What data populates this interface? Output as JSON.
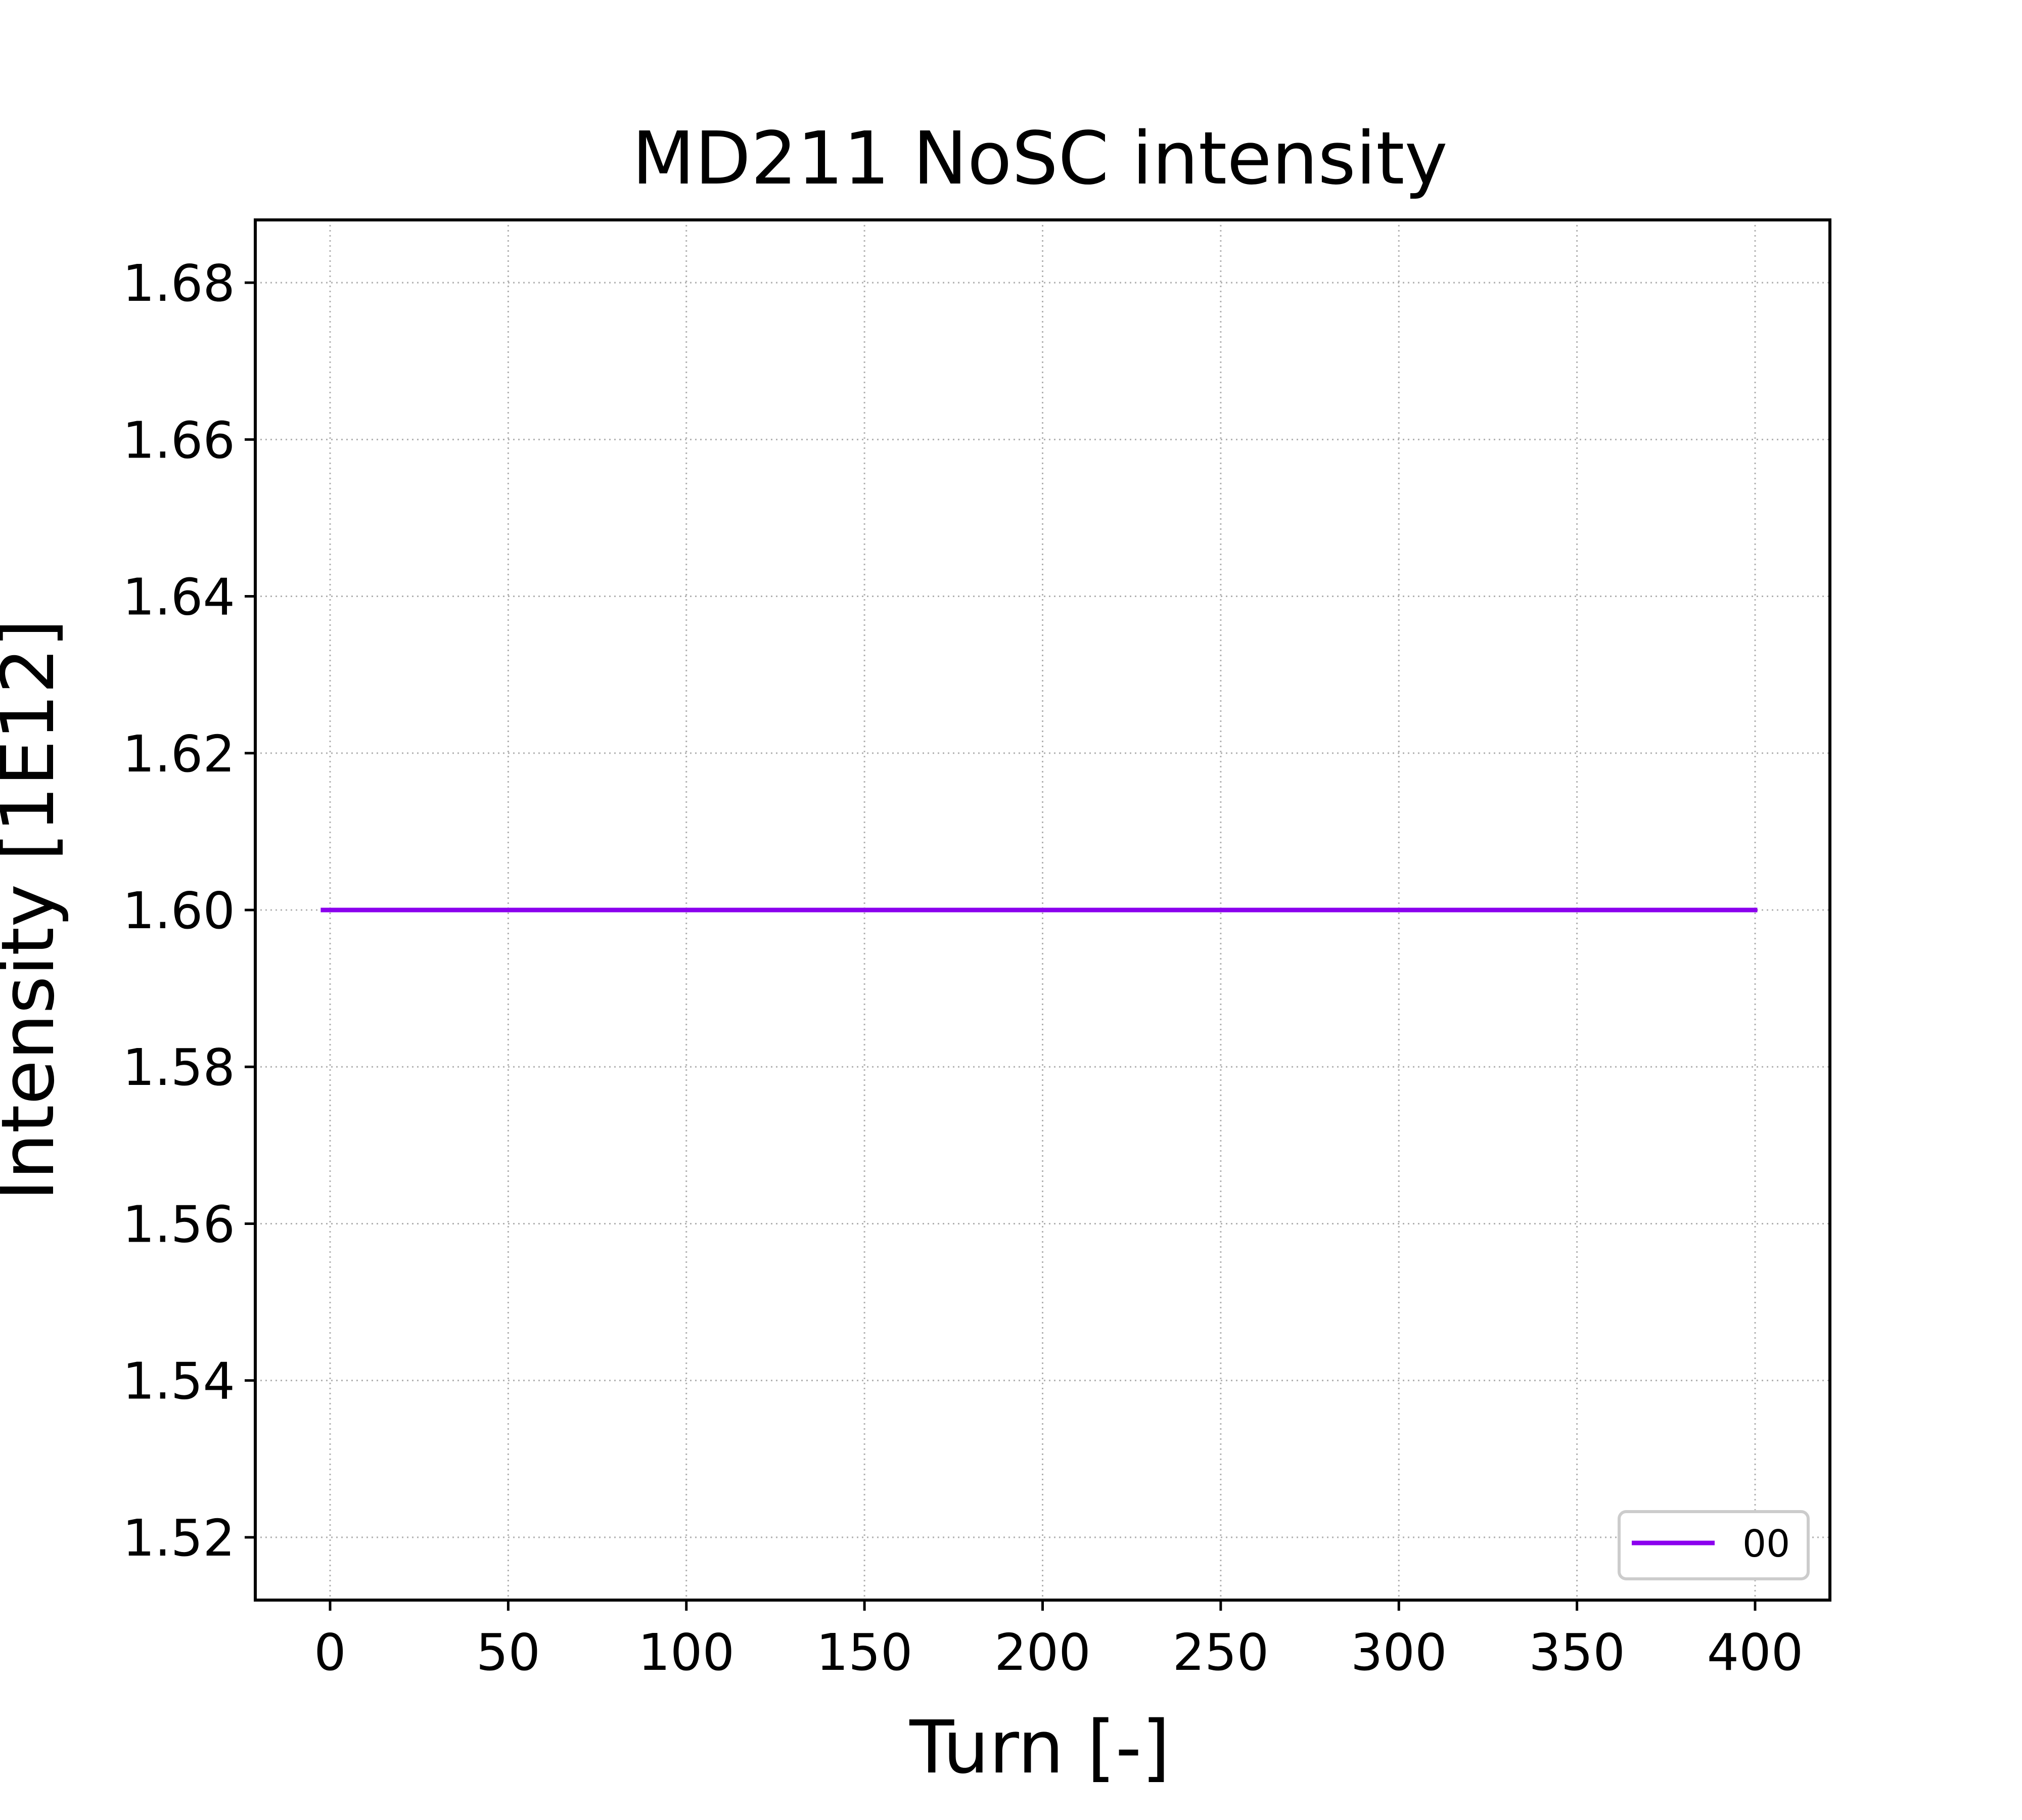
{
  "chart_data": {
    "type": "line",
    "title": "MD211 NoSC intensity",
    "xlabel": "Turn [-]",
    "ylabel": "Intensity [1E12]",
    "xlim": [
      -21,
      421
    ],
    "ylim": [
      1.512,
      1.688
    ],
    "xticks": [
      "0",
      "50",
      "100",
      "150",
      "200",
      "250",
      "300",
      "350",
      "400"
    ],
    "yticks": [
      "1.52",
      "1.54",
      "1.56",
      "1.58",
      "1.60",
      "1.62",
      "1.64",
      "1.66",
      "1.68"
    ],
    "grid": true,
    "legend_position": "lower right",
    "series": [
      {
        "name": "00",
        "color": "#8b00ee",
        "x": [
          -2,
          0,
          100,
          200,
          300,
          400
        ],
        "y": [
          1.6,
          1.6,
          1.6,
          1.6,
          1.6,
          1.6
        ]
      }
    ]
  }
}
